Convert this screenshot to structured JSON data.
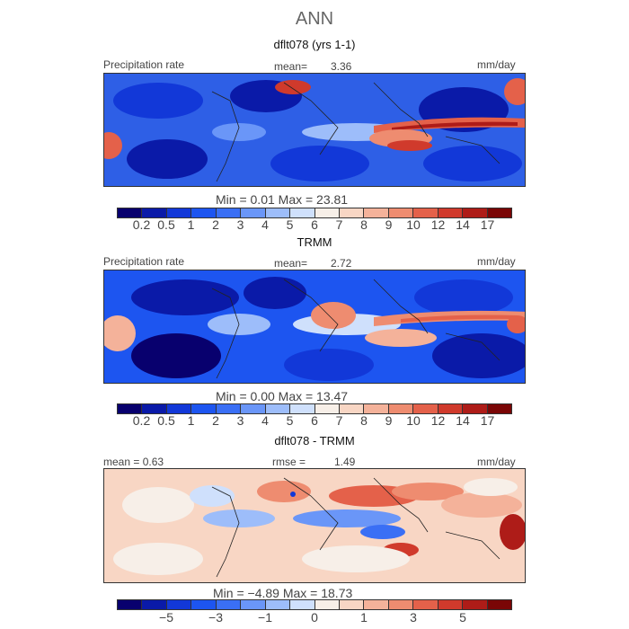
{
  "title": "ANN",
  "panels": [
    {
      "subtitle": "dflt078 (yrs 1-1)",
      "left_label": "Precipitation rate",
      "stat_label": "mean=",
      "stat_value": "3.36",
      "units": "mm/day",
      "minmax": "Min =    0.01  Max =   23.81",
      "colorbar": "precip"
    },
    {
      "subtitle": "TRMM",
      "left_label": "Precipitation rate",
      "stat_label": "mean=",
      "stat_value": "2.72",
      "units": "mm/day",
      "minmax": "Min =    0.00  Max =   13.47",
      "colorbar": "precip"
    },
    {
      "subtitle": "dflt078 - TRMM",
      "left_label": "mean =    0.63",
      "stat_label": "rmse =",
      "stat_value": "1.49",
      "units": "mm/day",
      "minmax": "Min =   −4.89  Max =   18.73",
      "colorbar": "diff"
    }
  ],
  "colorbars": {
    "precip": {
      "colors": [
        "#08006e",
        "#0a1aa8",
        "#1238d8",
        "#1d55f0",
        "#3a6ff5",
        "#6a96f8",
        "#9dbdfa",
        "#cfe0fc",
        "#f7efe8",
        "#f8d6c4",
        "#f4b29a",
        "#ee8c70",
        "#e4614a",
        "#d03a2c",
        "#ae1c18",
        "#7a0606"
      ],
      "ticks": [
        "0.2",
        "0.5",
        "1",
        "2",
        "3",
        "4",
        "5",
        "6",
        "7",
        "8",
        "9",
        "10",
        "12",
        "14",
        "17"
      ]
    },
    "diff": {
      "colors": [
        "#08006e",
        "#0a1aa8",
        "#1238d8",
        "#1d55f0",
        "#3a6ff5",
        "#6a96f8",
        "#9dbdfa",
        "#cfe0fc",
        "#f7efe8",
        "#f8d6c4",
        "#f4b29a",
        "#ee8c70",
        "#e4614a",
        "#d03a2c",
        "#ae1c18",
        "#7a0606"
      ],
      "ticks": [
        "−5",
        "−3",
        "−1",
        "0",
        "1",
        "3",
        "5"
      ]
    }
  }
}
